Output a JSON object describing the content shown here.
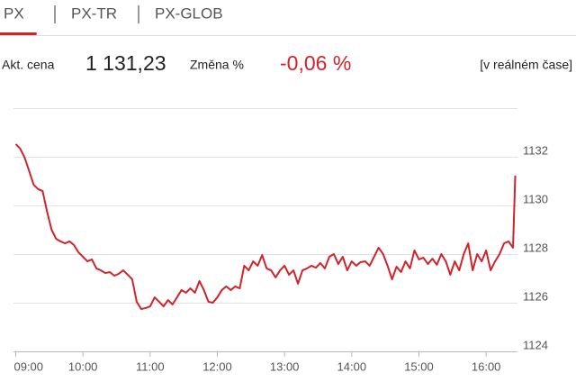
{
  "tabs": [
    {
      "label": "PX",
      "active": true
    },
    {
      "label": "PX-TR"
    },
    {
      "label": "PX-GLOB"
    }
  ],
  "quote": {
    "price_label": "Akt. cena",
    "price": "1 131,23",
    "change_label": "Změna %",
    "change": "-0,06 %",
    "mode": "[v reálném čase]"
  },
  "chart_data": {
    "type": "line",
    "x": [
      540,
      544,
      548,
      552,
      556,
      560,
      564,
      568,
      572,
      576,
      580,
      584,
      588,
      592,
      596,
      600,
      604,
      608,
      612,
      616,
      620,
      624,
      628,
      632,
      636,
      640,
      644,
      648,
      652,
      656,
      660,
      664,
      668,
      672,
      676,
      680,
      684,
      688,
      692,
      696,
      700,
      704,
      708,
      712,
      716,
      720,
      724,
      728,
      732,
      736,
      740,
      744,
      748,
      752,
      756,
      760,
      764,
      768,
      772,
      776,
      780,
      784,
      788,
      792,
      796,
      800,
      804,
      808,
      812,
      816,
      820,
      824,
      828,
      832,
      836,
      840,
      844,
      848,
      852,
      856,
      860,
      864,
      868,
      872,
      876,
      880,
      884,
      888,
      892,
      896,
      900,
      904,
      908,
      912,
      916,
      920,
      924,
      928,
      932,
      936,
      940,
      944,
      948,
      952,
      956,
      960,
      964,
      968,
      972,
      976,
      980,
      984,
      986
    ],
    "xlim": [
      538,
      988
    ],
    "xticks": [
      {
        "value": 540,
        "label": "09:00"
      },
      {
        "value": 600,
        "label": "10:00"
      },
      {
        "value": 660,
        "label": "11:00"
      },
      {
        "value": 720,
        "label": "12:00"
      },
      {
        "value": 780,
        "label": "13:00"
      },
      {
        "value": 840,
        "label": "14:00"
      },
      {
        "value": 900,
        "label": "15:00"
      },
      {
        "value": 960,
        "label": "16:00"
      }
    ],
    "ylim": [
      1124,
      1134
    ],
    "yticks": [
      1124,
      1126,
      1128,
      1130,
      1132
    ],
    "grid": true,
    "series": [
      {
        "color": "#d2232a",
        "values": [
          1132.52,
          1132.33,
          1131.96,
          1131.41,
          1130.85,
          1130.67,
          1130.59,
          1129.74,
          1129.0,
          1128.63,
          1128.52,
          1128.44,
          1128.52,
          1128.37,
          1128.07,
          1127.89,
          1127.7,
          1127.78,
          1127.41,
          1127.33,
          1127.22,
          1127.26,
          1127.11,
          1127.19,
          1127.33,
          1127.15,
          1126.96,
          1126.04,
          1125.74,
          1125.78,
          1125.85,
          1126.22,
          1126.04,
          1125.85,
          1126.11,
          1125.93,
          1126.22,
          1126.52,
          1126.41,
          1126.59,
          1126.41,
          1126.89,
          1126.52,
          1126.04,
          1126.0,
          1126.22,
          1126.52,
          1126.67,
          1126.52,
          1126.67,
          1126.59,
          1127.52,
          1127.33,
          1127.7,
          1127.52,
          1127.96,
          1127.41,
          1127.33,
          1127.04,
          1127.33,
          1127.52,
          1127.15,
          1127.33,
          1126.78,
          1127.33,
          1127.41,
          1127.52,
          1127.44,
          1127.63,
          1127.41,
          1127.89,
          1128.0,
          1127.59,
          1127.89,
          1127.33,
          1127.7,
          1127.52,
          1127.67,
          1127.7,
          1127.52,
          1127.89,
          1128.26,
          1128.0,
          1127.52,
          1126.96,
          1127.48,
          1127.26,
          1127.7,
          1127.41,
          1128.15,
          1127.78,
          1127.85,
          1127.59,
          1127.81,
          1127.56,
          1128.0,
          1127.7,
          1127.15,
          1127.7,
          1127.33,
          1128.0,
          1128.44,
          1127.33,
          1128.0,
          1127.7,
          1128.15,
          1127.33,
          1127.7,
          1128.0,
          1128.44,
          1128.52,
          1128.26,
          1131.23
        ]
      }
    ]
  }
}
